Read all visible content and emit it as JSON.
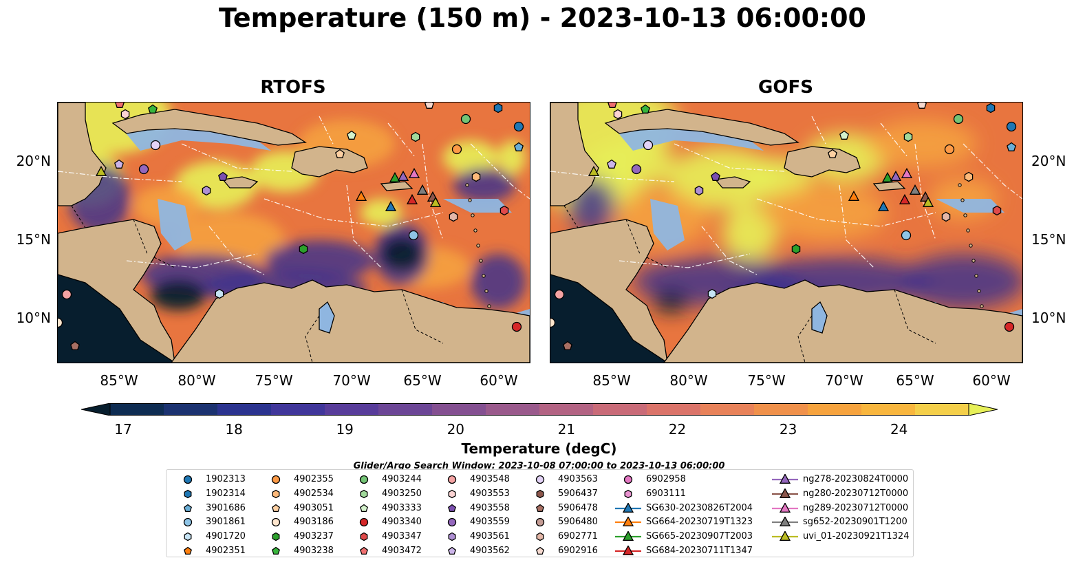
{
  "title": "Temperature (150 m) - 2023-10-13 06:00:00",
  "panels": [
    {
      "title": "RTOFS"
    },
    {
      "title": "GOFS"
    }
  ],
  "lat_ticks": [
    "20°N",
    "15°N",
    "10°N"
  ],
  "lon_ticks": [
    "85°W",
    "80°W",
    "75°W",
    "70°W",
    "65°W",
    "60°W"
  ],
  "colorbar": {
    "label": "Temperature (degC)",
    "ticks": [
      "17",
      "18",
      "19",
      "20",
      "21",
      "22",
      "23",
      "24"
    ],
    "colors": [
      "#071e2e",
      "#0e2c52",
      "#1b3270",
      "#2b338f",
      "#40369a",
      "#583c9a",
      "#6c4696",
      "#845091",
      "#9a5a8c",
      "#b36383",
      "#c96b78",
      "#db746a",
      "#e8825a",
      "#f0914b",
      "#f6a33e",
      "#f8b63e",
      "#f4cf4a",
      "#e7f058"
    ]
  },
  "search_window": "Glider/Argo Search Window: 2023-10-08 07:00:00 to 2023-10-13 06:00:00",
  "legend": [
    {
      "label": "1902313",
      "shape": "circle",
      "color": "#1f77b4"
    },
    {
      "label": "1902314",
      "shape": "hexagon",
      "color": "#1f77b4"
    },
    {
      "label": "3901686",
      "shape": "pentagon",
      "color": "#6aaed6"
    },
    {
      "label": "3901861",
      "shape": "circle",
      "color": "#8ec4e6"
    },
    {
      "label": "4901720",
      "shape": "hexagon",
      "color": "#c6e4f5"
    },
    {
      "label": "4902351",
      "shape": "pentagon",
      "color": "#ff7f0e"
    },
    {
      "label": "4902355",
      "shape": "circle",
      "color": "#fd9a46"
    },
    {
      "label": "4902534",
      "shape": "hexagon",
      "color": "#fdb97a"
    },
    {
      "label": "4903051",
      "shape": "pentagon",
      "color": "#fdd0a2"
    },
    {
      "label": "4903186",
      "shape": "circle",
      "color": "#fee6ce"
    },
    {
      "label": "4903237",
      "shape": "hexagon",
      "color": "#2ca02c"
    },
    {
      "label": "4903238",
      "shape": "pentagon",
      "color": "#37b53c"
    },
    {
      "label": "4903244",
      "shape": "circle",
      "color": "#74c476"
    },
    {
      "label": "4903250",
      "shape": "hexagon",
      "color": "#a1d99b"
    },
    {
      "label": "4903333",
      "shape": "pentagon",
      "color": "#d4f2cc"
    },
    {
      "label": "4903340",
      "shape": "circle",
      "color": "#d62728"
    },
    {
      "label": "4903347",
      "shape": "hexagon",
      "color": "#e04a4a"
    },
    {
      "label": "4903472",
      "shape": "pentagon",
      "color": "#ef6f6f"
    },
    {
      "label": "4903548",
      "shape": "circle",
      "color": "#f4a3a3"
    },
    {
      "label": "4903553",
      "shape": "hexagon",
      "color": "#fbd3d3"
    },
    {
      "label": "4903558",
      "shape": "pentagon",
      "color": "#7b4fb0"
    },
    {
      "label": "4903559",
      "shape": "circle",
      "color": "#9467bd"
    },
    {
      "label": "4903561",
      "shape": "hexagon",
      "color": "#ae8fd3"
    },
    {
      "label": "4903562",
      "shape": "pentagon",
      "color": "#cbb4e8"
    },
    {
      "label": "4903563",
      "shape": "circle",
      "color": "#e3d3f6"
    },
    {
      "label": "5906437",
      "shape": "hexagon",
      "color": "#8c564b"
    },
    {
      "label": "5906478",
      "shape": "pentagon",
      "color": "#a86f63"
    },
    {
      "label": "5906480",
      "shape": "circle",
      "color": "#c49c94"
    },
    {
      "label": "6902771",
      "shape": "hexagon",
      "color": "#e4b7a8"
    },
    {
      "label": "6902916",
      "shape": "pentagon",
      "color": "#f6d9cf"
    },
    {
      "label": "6902958",
      "shape": "circle",
      "color": "#e377c2"
    },
    {
      "label": "6903111",
      "shape": "hexagon",
      "color": "#e992d0"
    },
    {
      "label": "SG630-20230826T2004",
      "shape": "triangle",
      "color": "#1f77b4",
      "line": true
    },
    {
      "label": "SG664-20230719T1323",
      "shape": "triangle",
      "color": "#ff7f0e",
      "line": true
    },
    {
      "label": "SG665-20230907T2003",
      "shape": "triangle",
      "color": "#2ca02c",
      "line": true
    },
    {
      "label": "SG684-20230711T1347",
      "shape": "triangle",
      "color": "#d62728",
      "line": true
    },
    {
      "label": "ng278-20230824T0000",
      "shape": "triangle",
      "color": "#9467bd",
      "line": true
    },
    {
      "label": "ng280-20230712T0000",
      "shape": "triangle",
      "color": "#8c564b",
      "line": true
    },
    {
      "label": "ng289-20230712T0000",
      "shape": "triangle",
      "color": "#e377c2",
      "line": true
    },
    {
      "label": "sg652-20230901T1200",
      "shape": "triangle",
      "color": "#7f7f7f",
      "line": true
    },
    {
      "label": "uvi_01-20230921T1324",
      "shape": "triangle",
      "color": "#bcbd22",
      "line": true
    }
  ],
  "map_colors": {
    "land": "#d2b48c",
    "shelf": "#8fb6e0",
    "warm": "#e8753f",
    "hot": "#e7f058",
    "cool": "#3a2f8f",
    "cold": "#071e2e"
  }
}
